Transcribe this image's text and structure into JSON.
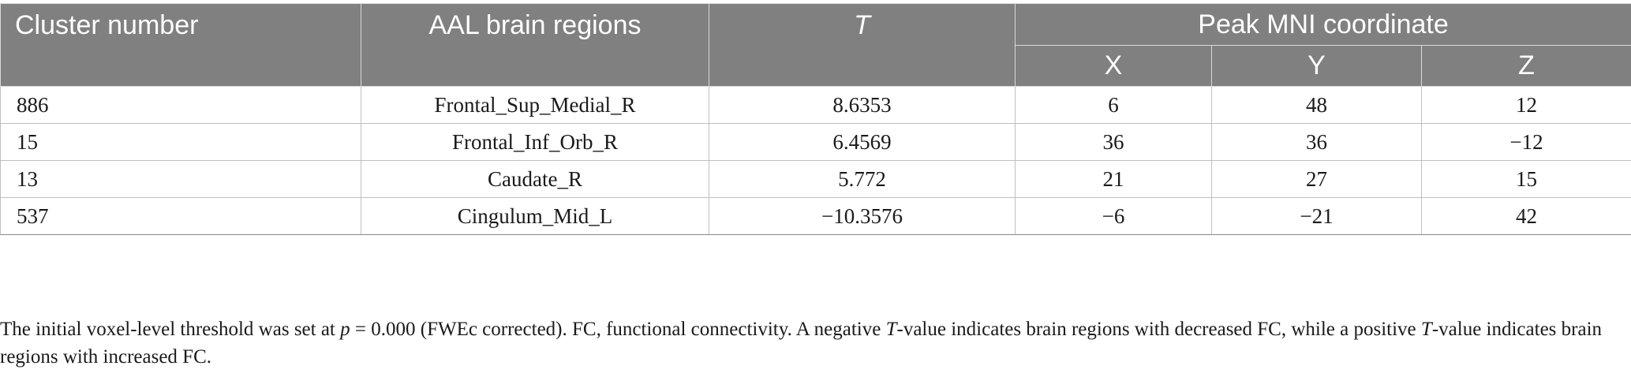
{
  "header": {
    "cluster_number": "Cluster number",
    "aal_regions": "AAL brain regions",
    "t": "T",
    "peak_mni": "Peak MNI coordinate",
    "x": "X",
    "y": "Y",
    "z": "Z"
  },
  "rows": [
    {
      "cluster": "886",
      "region": "Frontal_Sup_Medial_R",
      "t": "8.6353",
      "x": "6",
      "y": "48",
      "z": "12"
    },
    {
      "cluster": "15",
      "region": "Frontal_Inf_Orb_R",
      "t": "6.4569",
      "x": "36",
      "y": "36",
      "z": "−12"
    },
    {
      "cluster": "13",
      "region": "Caudate_R",
      "t": "5.772",
      "x": "21",
      "y": "27",
      "z": "15"
    },
    {
      "cluster": "537",
      "region": "Cingulum_Mid_L",
      "t": "−10.3576",
      "x": "−6",
      "y": "−21",
      "z": "42"
    }
  ],
  "footnote": {
    "part1": "The initial voxel-level threshold was set at ",
    "p_symbol": "p",
    "part2": " = 0.000 (FWEc corrected). FC, functional connectivity. A negative ",
    "t1": "T",
    "part3": "-value indicates brain regions with decreased FC, while a positive ",
    "t2": "T",
    "part4": "-value indicates brain regions with increased FC."
  }
}
